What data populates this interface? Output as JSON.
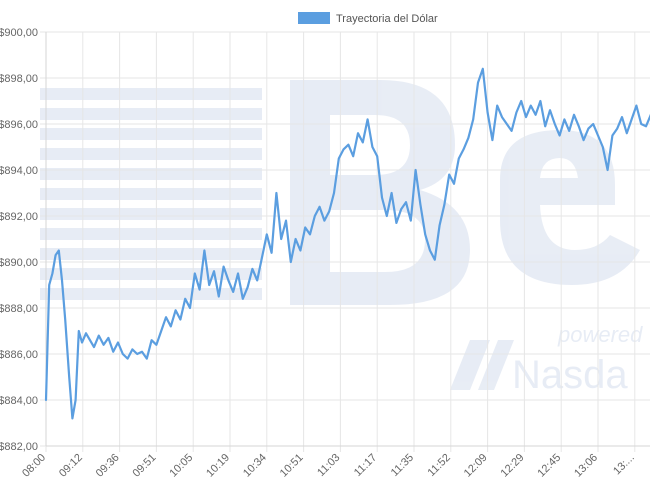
{
  "chart_data": {
    "type": "line",
    "legend": {
      "label": "Trayectoria del Dólar",
      "position": "top-center"
    },
    "ylim": [
      882,
      900
    ],
    "y_ticks": [
      "$900,00",
      "$898,00",
      "$896,00",
      "$894,00",
      "$892,00",
      "$890,00",
      "$888,00",
      "$886,00",
      "$884,00",
      "$882,00"
    ],
    "x_ticks": [
      "08:00",
      "09:12",
      "09:36",
      "09:51",
      "10:05",
      "10:19",
      "10:34",
      "10:51",
      "11:03",
      "11:17",
      "11:35",
      "11:52",
      "12:09",
      "12:29",
      "12:45",
      "13:06",
      "13:..."
    ],
    "grid": true,
    "line_color": "#5b9ee0",
    "series": [
      {
        "name": "Trayectoria del Dólar",
        "points": [
          [
            0,
            884.0
          ],
          [
            0.4,
            889.0
          ],
          [
            0.8,
            889.5
          ],
          [
            1.2,
            890.3
          ],
          [
            1.6,
            890.5
          ],
          [
            2.0,
            889.2
          ],
          [
            2.4,
            887.5
          ],
          [
            2.9,
            885.0
          ],
          [
            3.3,
            883.2
          ],
          [
            3.7,
            884.0
          ],
          [
            4.1,
            887.0
          ],
          [
            4.5,
            886.5
          ],
          [
            5.0,
            886.9
          ],
          [
            5.5,
            886.6
          ],
          [
            6.0,
            886.3
          ],
          [
            6.6,
            886.8
          ],
          [
            7.2,
            886.4
          ],
          [
            7.8,
            886.7
          ],
          [
            8.4,
            886.1
          ],
          [
            9.0,
            886.5
          ],
          [
            9.6,
            886.0
          ],
          [
            10.2,
            885.8
          ],
          [
            10.8,
            886.2
          ],
          [
            11.4,
            886.0
          ],
          [
            12.0,
            886.1
          ],
          [
            12.6,
            885.8
          ],
          [
            13.2,
            886.6
          ],
          [
            13.8,
            886.4
          ],
          [
            14.4,
            887.0
          ],
          [
            15.0,
            887.6
          ],
          [
            15.6,
            887.2
          ],
          [
            16.2,
            887.9
          ],
          [
            16.8,
            887.5
          ],
          [
            17.4,
            888.4
          ],
          [
            18.0,
            888.0
          ],
          [
            18.6,
            889.5
          ],
          [
            19.2,
            888.8
          ],
          [
            19.8,
            890.5
          ],
          [
            20.4,
            889.0
          ],
          [
            21.0,
            889.6
          ],
          [
            21.6,
            888.5
          ],
          [
            22.2,
            889.8
          ],
          [
            22.8,
            889.2
          ],
          [
            23.4,
            888.7
          ],
          [
            24.0,
            889.5
          ],
          [
            24.6,
            888.4
          ],
          [
            25.2,
            888.9
          ],
          [
            25.8,
            889.7
          ],
          [
            26.4,
            889.2
          ],
          [
            27.0,
            890.2
          ],
          [
            27.6,
            891.2
          ],
          [
            28.2,
            890.4
          ],
          [
            28.8,
            893.0
          ],
          [
            29.4,
            891.0
          ],
          [
            30.0,
            891.8
          ],
          [
            30.6,
            890.0
          ],
          [
            31.2,
            891.0
          ],
          [
            31.8,
            890.5
          ],
          [
            32.4,
            891.5
          ],
          [
            33.0,
            891.2
          ],
          [
            33.6,
            892.0
          ],
          [
            34.2,
            892.4
          ],
          [
            34.8,
            891.8
          ],
          [
            35.4,
            892.2
          ],
          [
            36.0,
            893.0
          ],
          [
            36.6,
            894.5
          ],
          [
            37.2,
            894.9
          ],
          [
            37.8,
            895.1
          ],
          [
            38.4,
            894.6
          ],
          [
            39.0,
            895.6
          ],
          [
            39.6,
            895.2
          ],
          [
            40.2,
            896.2
          ],
          [
            40.8,
            895.0
          ],
          [
            41.4,
            894.6
          ],
          [
            42.0,
            892.8
          ],
          [
            42.6,
            892.0
          ],
          [
            43.2,
            893.0
          ],
          [
            43.8,
            891.7
          ],
          [
            44.4,
            892.3
          ],
          [
            45.0,
            892.6
          ],
          [
            45.6,
            891.8
          ],
          [
            46.2,
            894.0
          ],
          [
            46.8,
            892.5
          ],
          [
            47.4,
            891.2
          ],
          [
            48.0,
            890.5
          ],
          [
            48.6,
            890.1
          ],
          [
            49.2,
            891.6
          ],
          [
            49.8,
            892.5
          ],
          [
            50.4,
            893.8
          ],
          [
            51.0,
            893.4
          ],
          [
            51.6,
            894.5
          ],
          [
            52.2,
            894.9
          ],
          [
            52.8,
            895.4
          ],
          [
            53.4,
            896.2
          ],
          [
            54.0,
            897.8
          ],
          [
            54.6,
            898.4
          ],
          [
            55.2,
            896.5
          ],
          [
            55.8,
            895.3
          ],
          [
            56.4,
            896.8
          ],
          [
            57.0,
            896.3
          ],
          [
            57.6,
            896.0
          ],
          [
            58.2,
            895.7
          ],
          [
            58.8,
            896.5
          ],
          [
            59.4,
            897.0
          ],
          [
            60.0,
            896.3
          ],
          [
            60.6,
            896.8
          ],
          [
            61.2,
            896.4
          ],
          [
            61.8,
            897.0
          ],
          [
            62.4,
            895.9
          ],
          [
            63.0,
            896.6
          ],
          [
            63.6,
            896.0
          ],
          [
            64.2,
            895.5
          ],
          [
            64.8,
            896.2
          ],
          [
            65.4,
            895.7
          ],
          [
            66.0,
            896.4
          ],
          [
            66.6,
            895.9
          ],
          [
            67.2,
            895.3
          ],
          [
            67.8,
            895.8
          ],
          [
            68.4,
            896.0
          ],
          [
            69.0,
            895.5
          ],
          [
            69.6,
            895.0
          ],
          [
            70.2,
            894.0
          ],
          [
            70.8,
            895.5
          ],
          [
            71.4,
            895.8
          ],
          [
            72.0,
            896.3
          ],
          [
            72.6,
            895.6
          ],
          [
            73.2,
            896.2
          ],
          [
            73.8,
            896.8
          ],
          [
            74.4,
            896.0
          ],
          [
            75.0,
            895.9
          ],
          [
            75.6,
            896.4
          ],
          [
            76.2,
            897.0
          ],
          [
            76.8,
            897.8
          ],
          [
            77.4,
            898.2
          ],
          [
            78.0,
            897.4
          ],
          [
            78.5,
            896.5
          ]
        ]
      }
    ]
  }
}
